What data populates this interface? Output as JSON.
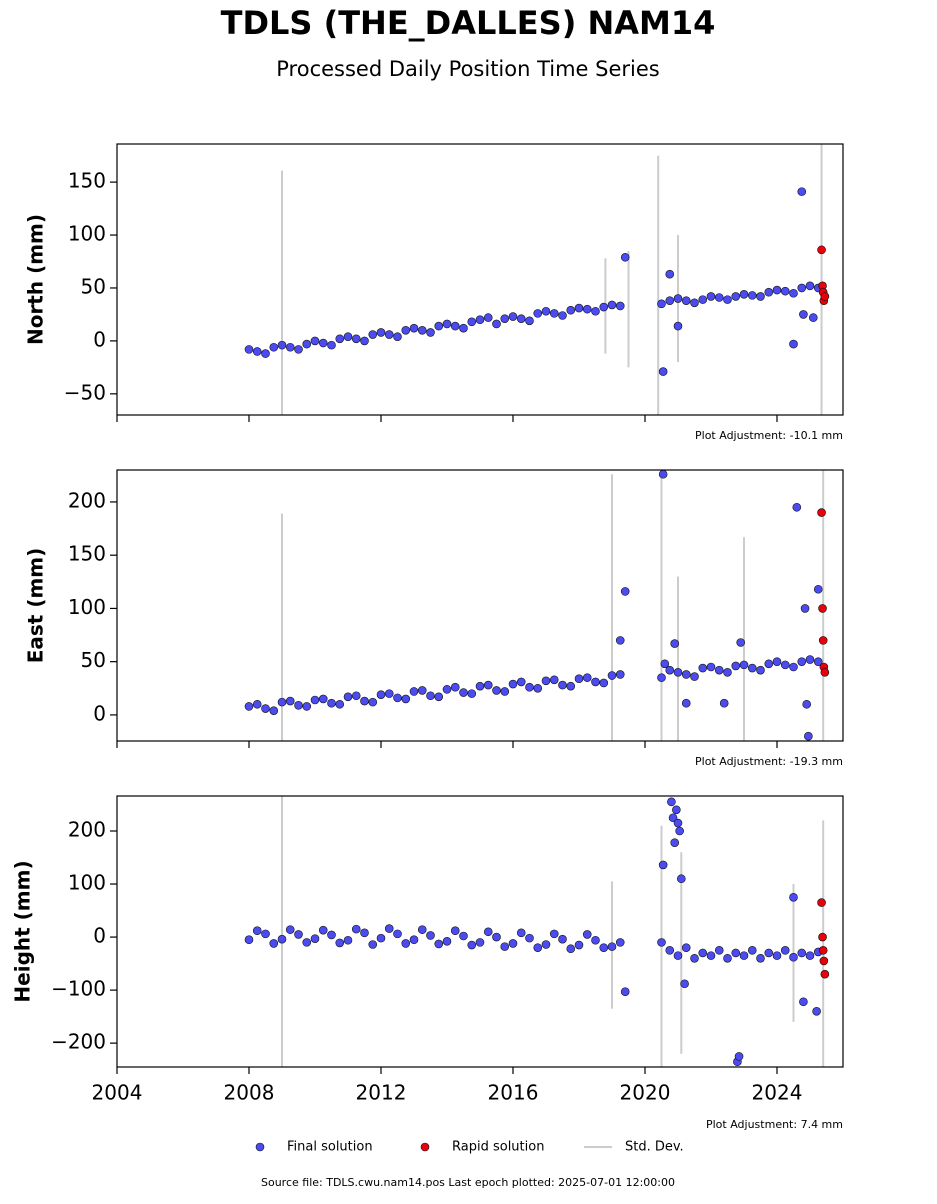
{
  "title": "TDLS (THE_DALLES) NAM14",
  "subtitle": "Processed Daily Position Time Series",
  "source": "Source file: TDLS.cwu.nam14.pos  Last epoch plotted: 2025-07-01 12:00:00",
  "chart_data": [
    {
      "type": "scatter",
      "ylabel": "North (mm)",
      "annotation": "Plot Adjustment: -10.1 mm",
      "xlim": [
        2004,
        2026
      ],
      "xticks": [
        2004,
        2008,
        2012,
        2016,
        2020,
        2024
      ],
      "ylim": [
        -70,
        186
      ],
      "yticks": [
        {
          "value": -50,
          "label": "−50"
        },
        0,
        50,
        100,
        150
      ],
      "series": [
        {
          "name": "Final solution",
          "color": "#4b4bf0",
          "x": [
            2008,
            2008.25,
            2008.5,
            2008.75,
            2009,
            2009.25,
            2009.5,
            2009.75,
            2010,
            2010.25,
            2010.5,
            2010.75,
            2011,
            2011.25,
            2011.5,
            2011.75,
            2012,
            2012.25,
            2012.5,
            2012.75,
            2013,
            2013.25,
            2013.5,
            2013.75,
            2014,
            2014.25,
            2014.5,
            2014.75,
            2015,
            2015.25,
            2015.5,
            2015.75,
            2016,
            2016.25,
            2016.5,
            2016.75,
            2017,
            2017.25,
            2017.5,
            2017.75,
            2018,
            2018.25,
            2018.5,
            2018.75,
            2019,
            2019.25,
            2020.5,
            2020.75,
            2021,
            2021.25,
            2021.5,
            2021.75,
            2022,
            2022.25,
            2022.5,
            2022.75,
            2023,
            2023.25,
            2023.5,
            2023.75,
            2024,
            2024.25,
            2024.5,
            2024.75,
            2025,
            2025.25,
            2019.4,
            2020.55,
            2020.75,
            2021,
            2024.5,
            2024.75,
            2024.8,
            2025.1
          ],
          "values": [
            -8,
            -10,
            -12,
            -6,
            -4,
            -6,
            -8,
            -3,
            0,
            -2,
            -4,
            2,
            4,
            2,
            0,
            6,
            8,
            6,
            4,
            10,
            12,
            10,
            8,
            14,
            16,
            14,
            12,
            18,
            20,
            22,
            16,
            21,
            23,
            21,
            19,
            26,
            28,
            26,
            24,
            29,
            31,
            30,
            28,
            32,
            34,
            33,
            35,
            38,
            40,
            38,
            36,
            39,
            42,
            41,
            39,
            42,
            44,
            43,
            42,
            46,
            48,
            47,
            45,
            50,
            52,
            50,
            79,
            -29,
            63,
            14,
            -3,
            141,
            25,
            22
          ]
        },
        {
          "name": "Rapid solution",
          "color": "#e8000b",
          "x": [
            2025.35,
            2025.38,
            2025.4,
            2025.42,
            2025.45
          ],
          "values": [
            86,
            52,
            46,
            38,
            42
          ]
        },
        {
          "name": "Std. Dev.",
          "color": "#cccccc",
          "x": [
            2009,
            2018.8,
            2019.5,
            2020.4,
            2021,
            2025.35
          ],
          "values": [
            -1,
            33,
            30,
            35,
            40,
            55
          ],
          "errors": [
            162,
            45,
            55,
            140,
            60,
            140
          ]
        }
      ]
    },
    {
      "type": "scatter",
      "ylabel": "East (mm)",
      "annotation": "Plot Adjustment: -19.3 mm",
      "xlim": [
        2004,
        2026
      ],
      "xticks": [
        2004,
        2008,
        2012,
        2016,
        2020,
        2024
      ],
      "ylim": [
        -24.5,
        230
      ],
      "yticks": [
        0,
        50,
        100,
        150,
        200
      ],
      "series": [
        {
          "color": "#4b4bf0",
          "x": [
            2008,
            2008.25,
            2008.5,
            2008.75,
            2009,
            2009.25,
            2009.5,
            2009.75,
            2010,
            2010.25,
            2010.5,
            2010.75,
            2011,
            2011.25,
            2011.5,
            2011.75,
            2012,
            2012.25,
            2012.5,
            2012.75,
            2013,
            2013.25,
            2013.5,
            2013.75,
            2014,
            2014.25,
            2014.5,
            2014.75,
            2015,
            2015.25,
            2015.5,
            2015.75,
            2016,
            2016.25,
            2016.5,
            2016.75,
            2017,
            2017.25,
            2017.5,
            2017.75,
            2018,
            2018.25,
            2018.5,
            2018.75,
            2019,
            2019.25,
            2020.5,
            2020.75,
            2021,
            2021.25,
            2021.5,
            2021.75,
            2022,
            2022.25,
            2022.5,
            2022.75,
            2023,
            2023.25,
            2023.5,
            2023.75,
            2024,
            2024.25,
            2024.5,
            2024.75,
            2025,
            2025.25,
            2019.25,
            2019.4,
            2020.55,
            2020.6,
            2020.9,
            2021.25,
            2022.4,
            2022.9,
            2024.6,
            2024.85,
            2024.9,
            2024.95,
            2025.25
          ],
          "values": [
            8,
            10,
            6,
            4,
            12,
            13,
            9,
            8,
            14,
            15,
            11,
            10,
            17,
            18,
            13,
            12,
            19,
            20,
            16,
            15,
            22,
            23,
            18,
            17,
            24,
            26,
            21,
            20,
            27,
            28,
            23,
            22,
            29,
            31,
            26,
            25,
            32,
            33,
            28,
            27,
            34,
            35,
            31,
            30,
            37,
            38,
            35,
            42,
            40,
            38,
            36,
            44,
            45,
            42,
            40,
            46,
            47,
            44,
            42,
            48,
            50,
            47,
            45,
            50,
            52,
            50,
            70,
            116,
            226,
            48,
            67,
            11,
            11,
            68,
            195,
            100,
            10,
            -20,
            118
          ]
        },
        {
          "color": "#e8000b",
          "x": [
            2025.35,
            2025.38,
            2025.4,
            2025.42,
            2025.45
          ],
          "values": [
            190,
            100,
            70,
            45,
            40
          ]
        },
        {
          "color": "#cccccc",
          "x": [
            2009,
            2019,
            2020.5,
            2021,
            2023,
            2025.4
          ],
          "values": [
            14,
            36,
            40,
            40,
            42,
            50
          ],
          "errors": [
            175,
            190,
            190,
            90,
            125,
            200
          ]
        }
      ]
    },
    {
      "type": "scatter",
      "ylabel": "Height (mm)",
      "annotation": "Plot Adjustment: 7.4 mm",
      "xlim": [
        2004,
        2026
      ],
      "xticks": [
        2004,
        2008,
        2012,
        2016,
        2020,
        2024
      ],
      "ylim": [
        -245,
        266
      ],
      "yticks": [
        {
          "value": -200,
          "label": "−200"
        },
        {
          "value": -100,
          "label": "−100"
        },
        0,
        100,
        200
      ],
      "series": [
        {
          "color": "#4b4bf0",
          "x": [
            2008,
            2008.25,
            2008.5,
            2008.75,
            2009,
            2009.25,
            2009.5,
            2009.75,
            2010,
            2010.25,
            2010.5,
            2010.75,
            2011,
            2011.25,
            2011.5,
            2011.75,
            2012,
            2012.25,
            2012.5,
            2012.75,
            2013,
            2013.25,
            2013.5,
            2013.75,
            2014,
            2014.25,
            2014.5,
            2014.75,
            2015,
            2015.25,
            2015.5,
            2015.75,
            2016,
            2016.25,
            2016.5,
            2016.75,
            2017,
            2017.25,
            2017.5,
            2017.75,
            2018,
            2018.25,
            2018.5,
            2018.75,
            2019,
            2019.25,
            2020.5,
            2020.75,
            2021,
            2021.25,
            2021.5,
            2021.75,
            2022,
            2022.25,
            2022.5,
            2022.75,
            2023,
            2023.25,
            2023.5,
            2023.75,
            2024,
            2024.25,
            2024.5,
            2024.75,
            2025,
            2025.25,
            2019.4,
            2020.55,
            2020.8,
            2020.85,
            2020.9,
            2020.95,
            2021,
            2021.05,
            2021.1,
            2021.2,
            2022.8,
            2022.85,
            2024.5,
            2024.8,
            2025.2
          ],
          "values": [
            -5,
            12,
            6,
            -12,
            -4,
            14,
            5,
            -10,
            -3,
            13,
            4,
            -11,
            -6,
            15,
            8,
            -14,
            -2,
            16,
            6,
            -12,
            -5,
            14,
            3,
            -13,
            -8,
            12,
            2,
            -15,
            -10,
            10,
            0,
            -18,
            -12,
            8,
            -2,
            -20,
            -14,
            6,
            -4,
            -22,
            -15,
            5,
            -6,
            -20,
            -18,
            -10,
            -10,
            -25,
            -35,
            -20,
            -40,
            -30,
            -35,
            -25,
            -40,
            -30,
            -35,
            -25,
            -40,
            -30,
            -35,
            -25,
            -38,
            -30,
            -35,
            -28,
            -103,
            136,
            255,
            225,
            178,
            240,
            215,
            200,
            110,
            -88,
            -235,
            -225,
            75,
            -122,
            -140
          ]
        },
        {
          "color": "#e8000b",
          "x": [
            2025.35,
            2025.38,
            2025.4,
            2025.42,
            2025.45
          ],
          "values": [
            65,
            0,
            -25,
            -45,
            -70
          ]
        },
        {
          "color": "#cccccc",
          "x": [
            2009,
            2019,
            2020.5,
            2021.1,
            2024.5,
            2025.4
          ],
          "values": [
            -5,
            -15,
            -20,
            -30,
            -30,
            -30
          ],
          "errors": [
            270,
            120,
            230,
            190,
            130,
            250
          ]
        }
      ]
    }
  ]
}
